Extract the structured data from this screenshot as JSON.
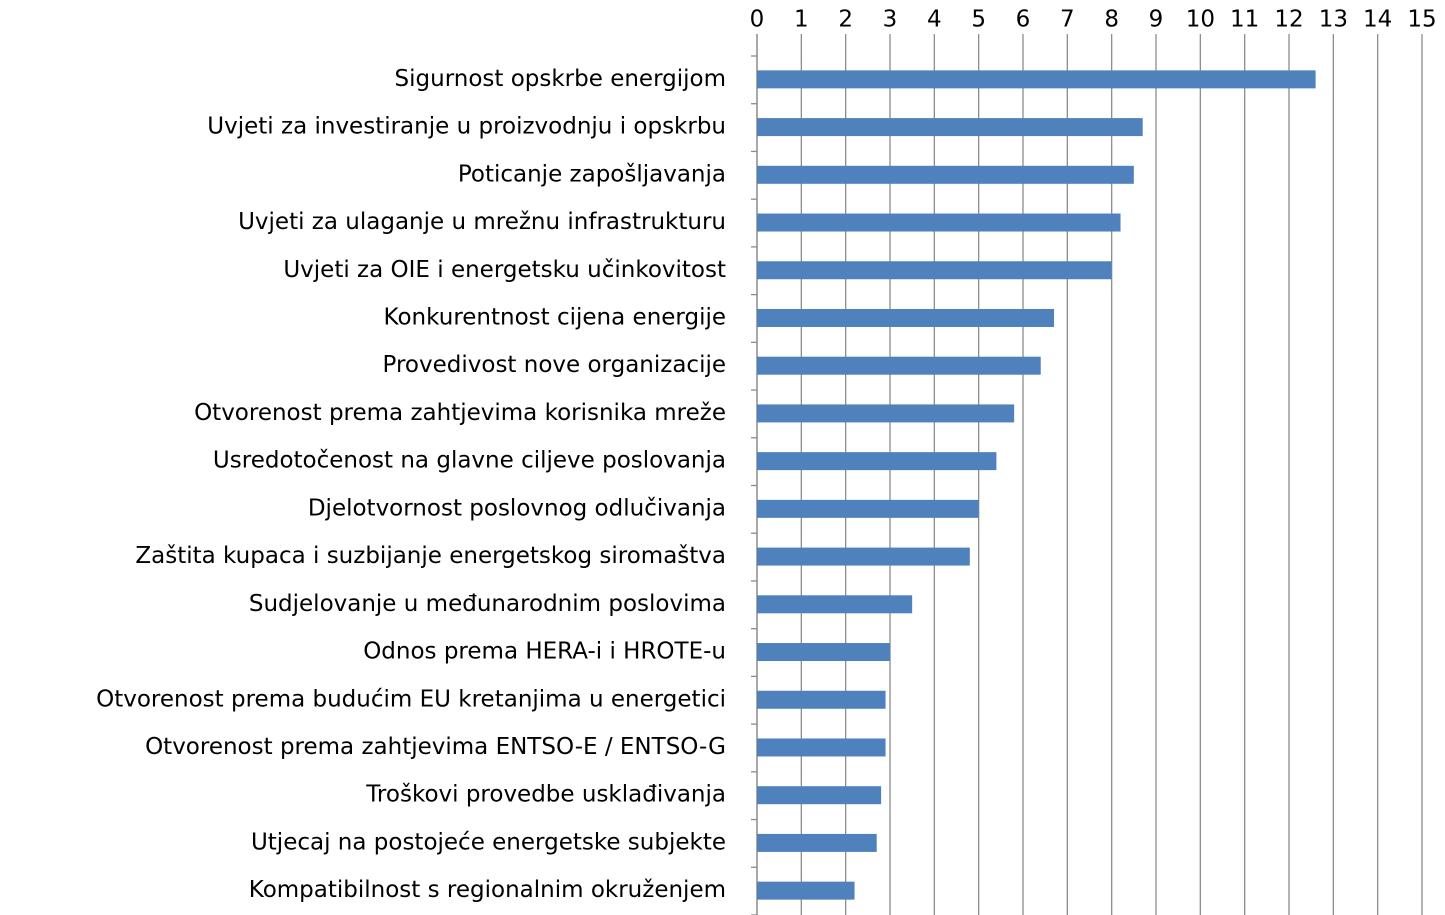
{
  "chart_data": {
    "type": "barh",
    "categories": [
      "Sigurnost opskrbe energijom",
      "Uvjeti za investiranje u proizvodnju i opskrbu",
      "Poticanje zapošljavanja",
      "Uvjeti  za ulaganje u mrežnu infrastrukturu",
      "Uvjeti za OIE i energetsku učinkovitost",
      "Konkurentnost cijena energije",
      "Provedivost nove organizacije",
      "Otvorenost prema zahtjevima korisnika mreže",
      "Usredotočenost na glavne ciljeve poslovanja",
      "Djelotvornost poslovnog odlučivanja",
      "Zaštita kupaca i suzbijanje energetskog siromaštva",
      "Sudjelovanje u međunarodnim  poslovima",
      "Odnos prema HERA-i i HROTE-u",
      "Otvorenost prema budućim EU kretanjima u energetici",
      "Otvorenost prema zahtjevima ENTSO-E / ENTSO-G",
      "Troškovi provedbe usklađivanja",
      "Utjecaj na postojeće energetske subjekte",
      "Kompatibilnost s regionalnim okruženjem"
    ],
    "values": [
      12.6,
      8.7,
      8.5,
      8.2,
      8.0,
      6.7,
      6.4,
      5.8,
      5.4,
      5.0,
      4.8,
      3.5,
      3.0,
      2.9,
      2.9,
      2.8,
      2.7,
      2.2
    ],
    "color": "#4f81bd",
    "xlim": [
      0,
      15
    ],
    "xticks": [
      0,
      1,
      2,
      3,
      4,
      5,
      6,
      7,
      8,
      9,
      10,
      11,
      12,
      13,
      14,
      15
    ],
    "grid": true
  }
}
